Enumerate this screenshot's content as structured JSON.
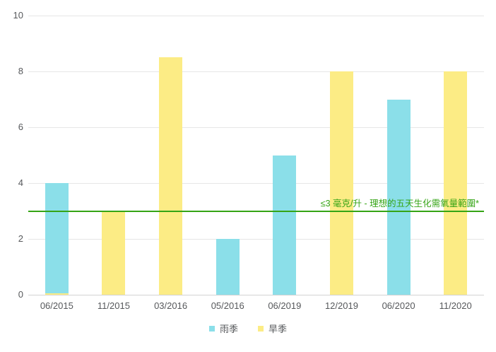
{
  "chart_data": {
    "type": "bar",
    "title": "",
    "categories": [
      "06/2015",
      "11/2015",
      "03/2016",
      "05/2016",
      "06/2019",
      "12/2019",
      "06/2020",
      "11/2020"
    ],
    "series": [
      {
        "name": "雨季",
        "color": "#8bdfe9",
        "values": [
          4,
          null,
          null,
          2,
          5,
          null,
          7,
          null
        ]
      },
      {
        "name": "旱季",
        "color": "#fcec85",
        "values": [
          0,
          3,
          8.5,
          null,
          null,
          8,
          null,
          8
        ]
      }
    ],
    "ylim": [
      0,
      10
    ],
    "yticks": [
      0,
      2,
      4,
      6,
      8,
      10
    ],
    "grid": true,
    "legend_position": "bottom",
    "reference_line": {
      "value": 3,
      "color": "#35a415",
      "label": "≤3 毫克/升 - 理想的五天生化需氧量範圍*"
    }
  },
  "axis": {
    "tick_color": "#56585b",
    "gridline_color": "#e6e6e6",
    "baseline_color": "#d2d2d2"
  }
}
